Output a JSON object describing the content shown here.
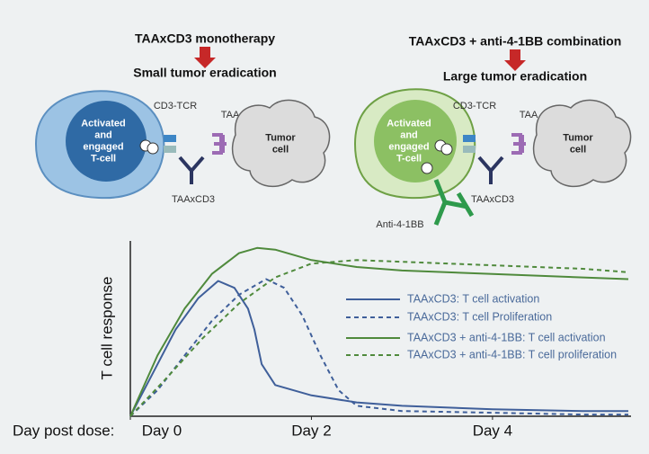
{
  "diagram": {
    "left": {
      "title": "TAAxCD3 monotherapy",
      "subtitle": "Small tumor eradication",
      "tcell": [
        "Activated",
        "and",
        "engaged",
        "T-cell"
      ],
      "receptor": "CD3-TCR",
      "antigen": "TAA",
      "tumor": [
        "Tumor",
        "cell"
      ],
      "antibody": "TAAxCD3"
    },
    "right": {
      "title": "TAAxCD3 + anti-4-1BB combination",
      "subtitle": "Large tumor eradication",
      "tcell": [
        "Activated",
        "and",
        "engaged",
        "T-cell"
      ],
      "receptor": "CD3-TCR",
      "antigen": "TAA",
      "tumor": [
        "Tumor",
        "cell"
      ],
      "antibody": "TAAxCD3",
      "agonist": "Anti-4-1BB"
    }
  },
  "chart_data": {
    "type": "line",
    "y_label": "T cell response",
    "x_label": "Day post dose:",
    "xlim": [
      0,
      5.5
    ],
    "ylim": [
      0,
      100
    ],
    "xticks": [
      {
        "value": 0,
        "label": "Day 0"
      },
      {
        "value": 2,
        "label": "Day 2"
      },
      {
        "value": 4,
        "label": "Day 4"
      }
    ],
    "series": [
      {
        "name": "TAAxCD3: T cell activation",
        "color": "#3f5f9a",
        "dashed": false,
        "x": [
          0,
          0.25,
          0.5,
          0.75,
          0.97,
          1.15,
          1.3,
          1.37,
          1.45,
          1.6,
          2,
          2.5,
          3,
          4,
          5,
          5.5
        ],
        "values": [
          0,
          25,
          50,
          68,
          78,
          74,
          62,
          50,
          30,
          18,
          12,
          8,
          6,
          4,
          3,
          3
        ]
      },
      {
        "name": "TAAxCD3: T cell Proliferation",
        "color": "#3f5f9a",
        "dashed": true,
        "x": [
          0,
          0.3,
          0.6,
          0.9,
          1.2,
          1.5,
          1.7,
          1.9,
          2.1,
          2.3,
          2.5,
          3,
          4,
          5,
          5.5
        ],
        "values": [
          0,
          15,
          35,
          55,
          70,
          79,
          74,
          58,
          35,
          15,
          6,
          3,
          2,
          1,
          1
        ]
      },
      {
        "name": "TAAxCD3 + anti-4-1BB: T cell activation",
        "color": "#4f8a3c",
        "dashed": false,
        "x": [
          0,
          0.3,
          0.6,
          0.9,
          1.2,
          1.4,
          1.6,
          2,
          2.5,
          3,
          4,
          5,
          5.5
        ],
        "values": [
          0,
          35,
          62,
          82,
          94,
          97,
          96,
          90,
          86,
          84,
          82,
          80,
          79
        ]
      },
      {
        "name": "TAAxCD3 + anti-4-1BB: T cell proliferation",
        "color": "#4f8a3c",
        "dashed": true,
        "x": [
          0,
          0.4,
          0.8,
          1.2,
          1.6,
          2,
          2.5,
          3,
          4,
          5,
          5.5
        ],
        "values": [
          0,
          22,
          45,
          65,
          80,
          88,
          90,
          89,
          87,
          85,
          83
        ]
      }
    ]
  }
}
